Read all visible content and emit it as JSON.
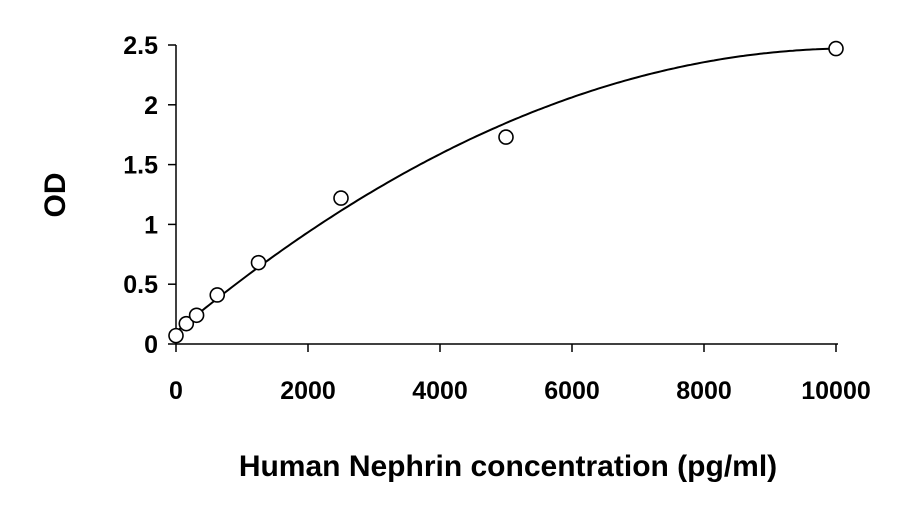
{
  "chart_data": {
    "type": "scatter",
    "title": "",
    "xlabel": "Human Nephrin concentration (pg/ml)",
    "ylabel": "OD",
    "xlim": [
      0,
      10000
    ],
    "ylim": [
      0,
      2.5
    ],
    "x_ticks": [
      "0",
      "2000",
      "4000",
      "6000",
      "8000",
      "10000"
    ],
    "y_ticks": [
      "0",
      "0.5",
      "1",
      "1.5",
      "2",
      "2.5"
    ],
    "grid": false,
    "legend": "none",
    "series": [
      {
        "x": [
          0,
          156,
          312,
          625,
          1250,
          2500,
          5000,
          10000
        ],
        "y": [
          0.07,
          0.17,
          0.24,
          0.41,
          0.68,
          1.22,
          1.73,
          2.47
        ],
        "marker": "open-circle"
      }
    ],
    "fit_curve": {
      "type": "polynomial-2",
      "coefficients": [
        0.1,
        0.000462,
        -2.25e-08
      ]
    },
    "colors": {
      "marker": "#000000",
      "line": "#000000",
      "axis": "#000000"
    }
  }
}
